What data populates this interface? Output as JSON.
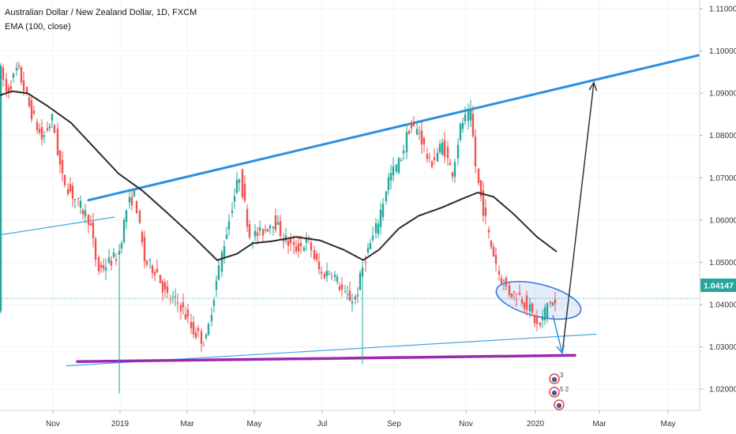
{
  "header": {
    "title": "Australian Dollar / New Zealand Dollar, 1D, FXCM",
    "indicator": "EMA (100, close)"
  },
  "colors": {
    "up": "#26a69a",
    "down": "#ef5350",
    "ema": "#2b2b2b",
    "trend_upper": "#2a8fe0",
    "trend_support": "#9c27b0",
    "ellipse": "#3b6fd8",
    "last_price_bg": "#26a69a"
  },
  "chart_data": {
    "type": "candlestick",
    "symbol": "AUDNZD",
    "interval": "1D",
    "x_tick_labels": [
      "Nov",
      "2019",
      "Mar",
      "May",
      "Jul",
      "Sep",
      "Nov",
      "2020",
      "Mar",
      "May"
    ],
    "y_tick_labels": [
      "1.02000",
      "1.03000",
      "1.04000",
      "1.05000",
      "1.06000",
      "1.07000",
      "1.08000",
      "1.09000",
      "1.10000",
      "1.11000"
    ],
    "y_range": [
      1.0105,
      1.1115
    ],
    "last_price": "1.04147",
    "price_path": [
      [
        0,
        1.097
      ],
      [
        10,
        1.09
      ],
      [
        24,
        1.096
      ],
      [
        40,
        1.086
      ],
      [
        55,
        1.079
      ],
      [
        68,
        1.084
      ],
      [
        80,
        1.07
      ],
      [
        100,
        1.064
      ],
      [
        115,
        1.06
      ],
      [
        125,
        1.048
      ],
      [
        140,
        1.05
      ],
      [
        152,
        1.052
      ],
      [
        162,
        1.063
      ],
      [
        172,
        1.066
      ],
      [
        185,
        1.05
      ],
      [
        200,
        1.048
      ],
      [
        212,
        1.042
      ],
      [
        230,
        1.04
      ],
      [
        245,
        1.034
      ],
      [
        262,
        1.031
      ],
      [
        278,
        1.048
      ],
      [
        295,
        1.063
      ],
      [
        305,
        1.071
      ],
      [
        318,
        1.056
      ],
      [
        333,
        1.057
      ],
      [
        348,
        1.06
      ],
      [
        360,
        1.056
      ],
      [
        374,
        1.053
      ],
      [
        392,
        1.055
      ],
      [
        408,
        1.047
      ],
      [
        422,
        1.048
      ],
      [
        438,
        1.042
      ],
      [
        452,
        1.041
      ],
      [
        462,
        1.05
      ],
      [
        478,
        1.058
      ],
      [
        494,
        1.07
      ],
      [
        508,
        1.074
      ],
      [
        520,
        1.082
      ],
      [
        532,
        1.081
      ],
      [
        546,
        1.073
      ],
      [
        562,
        1.078
      ],
      [
        574,
        1.071
      ],
      [
        586,
        1.083
      ],
      [
        598,
        1.085
      ],
      [
        604,
        1.072
      ],
      [
        612,
        1.064
      ],
      [
        622,
        1.055
      ],
      [
        634,
        1.047
      ],
      [
        646,
        1.043
      ],
      [
        660,
        1.042
      ],
      [
        672,
        1.039
      ],
      [
        684,
        1.034
      ],
      [
        696,
        1.041
      ],
      [
        705,
        1.04
      ]
    ],
    "ema": [
      [
        0,
        1.0895
      ],
      [
        15,
        1.0905
      ],
      [
        35,
        1.09
      ],
      [
        60,
        1.087
      ],
      [
        90,
        1.083
      ],
      [
        120,
        1.077
      ],
      [
        150,
        1.071
      ],
      [
        180,
        1.067
      ],
      [
        210,
        1.062
      ],
      [
        245,
        1.056
      ],
      [
        275,
        1.0505
      ],
      [
        300,
        1.052
      ],
      [
        320,
        1.0545
      ],
      [
        345,
        1.055
      ],
      [
        375,
        1.056
      ],
      [
        405,
        1.0552
      ],
      [
        435,
        1.053
      ],
      [
        460,
        1.0505
      ],
      [
        480,
        1.053
      ],
      [
        505,
        1.058
      ],
      [
        530,
        1.061
      ],
      [
        560,
        1.063
      ],
      [
        585,
        1.065
      ],
      [
        605,
        1.0665
      ],
      [
        625,
        1.0655
      ],
      [
        650,
        1.0615
      ],
      [
        680,
        1.056
      ],
      [
        705,
        1.0525
      ]
    ],
    "drawings": {
      "upper_trendline": [
        [
          112,
          1.0647
        ],
        [
          885,
          1.099
        ]
      ],
      "left_line": [
        [
          0,
          1.0565
        ],
        [
          145,
          1.0607
        ]
      ],
      "support_purple": [
        [
          98,
          1.0265
        ],
        [
          728,
          1.028
        ]
      ],
      "support_thin": [
        [
          84,
          1.0255
        ],
        [
          755,
          1.033
        ]
      ],
      "ellipse": {
        "cx": 682,
        "cy": 1.041,
        "rx": 55,
        "ry_price": 0.0038,
        "angle_deg": 14
      },
      "arrow_up": [
        [
          712,
          1.0285
        ],
        [
          752,
          1.0925
        ]
      ],
      "arrow_down": [
        [
          700,
          1.0375
        ],
        [
          712,
          1.0285
        ]
      ]
    },
    "grid": true,
    "legend": "top-left"
  }
}
